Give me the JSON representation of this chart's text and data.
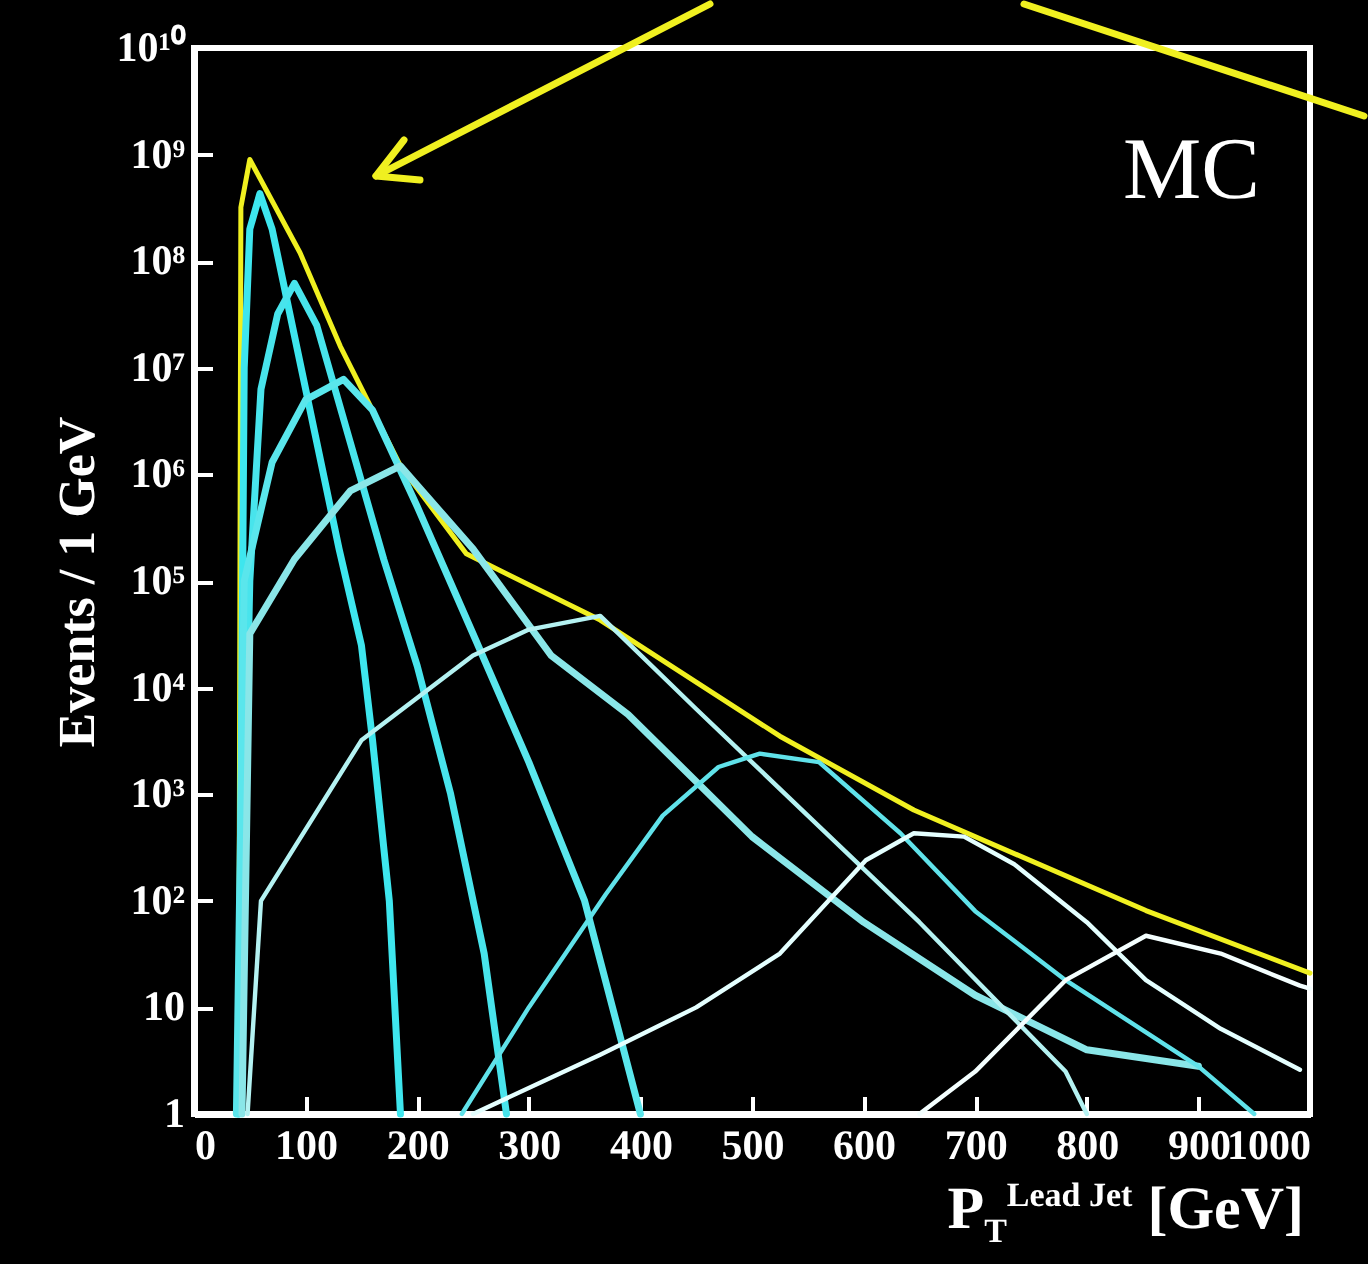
{
  "chart_data": {
    "type": "line",
    "ylabel": "Events / 1 GeV",
    "xlabel": "P$_{T}$$^{Lead Jet}$ [GeV]",
    "annotations": [
      "MC"
    ],
    "xlim": [
      0,
      1000
    ],
    "xticks": [
      0,
      100,
      200,
      300,
      400,
      500,
      600,
      700,
      800,
      900,
      1000
    ],
    "ylim": [
      1,
      10000000000
    ],
    "yticks": [
      1,
      10,
      {
        "value": 100,
        "label": "10²"
      },
      {
        "value": 1000,
        "label": "10³"
      },
      {
        "value": 10000,
        "label": "10⁴"
      },
      {
        "value": 100000,
        "label": "10⁵"
      },
      {
        "value": 1000000,
        "label": "10⁶"
      },
      {
        "value": 10000000,
        "label": "10⁷"
      },
      {
        "value": 100000000,
        "label": "10⁸"
      },
      {
        "value": 1000000000,
        "label": "10⁹"
      },
      {
        "value": 10000000000,
        "label": "10¹⁰"
      }
    ],
    "log": "y",
    "series": [
      {
        "color": "#f0f020",
        "x": [
          40,
          42,
          50,
          95,
          131,
          185,
          244,
          364,
          525,
          645,
          853,
          1000
        ],
        "values": [
          1,
          320000000,
          900000000,
          120000000,
          16000000,
          1200000,
          180000,
          43000,
          3500,
          710,
          81,
          21
        ]
      },
      {
        "color": "#3ee6ee",
        "x": [
          40,
          45,
          50,
          59,
          70,
          90,
          110,
          130,
          150,
          160,
          175,
          185
        ],
        "values": [
          1,
          10000000,
          200000000,
          430000000,
          200000000,
          20000000,
          2000000,
          200000,
          25000,
          3200,
          100,
          1
        ]
      },
      {
        "color": "#48e4ec",
        "x": [
          40,
          50,
          60,
          75,
          90,
          110,
          140,
          170,
          200,
          230,
          260,
          280
        ],
        "values": [
          1,
          100000,
          6300000,
          32000000,
          62000000,
          25000000,
          2000000,
          160000,
          16000,
          1000,
          32,
          1
        ]
      },
      {
        "color": "#5ae6ec",
        "x": [
          38,
          45,
          70,
          100,
          134,
          160,
          200,
          250,
          300,
          350,
          400
        ],
        "values": [
          1,
          100000,
          1300000,
          5000000,
          7800000,
          4000000,
          500000,
          32000,
          2000,
          100,
          1
        ]
      },
      {
        "color": "#8ae6e8",
        "x": [
          43,
          50,
          90,
          140,
          185,
          250,
          320,
          389,
          500,
          600,
          700,
          800,
          900
        ],
        "values": [
          1,
          32000,
          160000,
          700000,
          1200000,
          200000,
          20000,
          5600,
          400,
          63,
          13,
          4,
          2.8
        ]
      },
      {
        "color": "#b4f2f2",
        "x": [
          48,
          60,
          150,
          250,
          300,
          364,
          450,
          550,
          650,
          781,
          800
        ],
        "values": [
          1,
          100,
          3200,
          20000,
          35000,
          47000,
          6300,
          630,
          63,
          2.5,
          1
        ]
      },
      {
        "color": "#60e2ea",
        "x": [
          240,
          300,
          369,
          420,
          470,
          507,
          560,
          633,
          700,
          781,
          900,
          950
        ],
        "values": [
          1,
          10,
          115,
          630,
          1800,
          2400,
          2000,
          430,
          80,
          18,
          2.8,
          1
        ]
      },
      {
        "color": "#e4ffff",
        "x": [
          250,
          364,
          450,
          525,
          602,
          645,
          690,
          735,
          800,
          853,
          920,
          991
        ],
        "values": [
          1,
          3.6,
          10,
          32,
          240,
          430,
          400,
          220,
          63,
          18,
          6.3,
          2.6
        ]
      },
      {
        "color": "#f4ffff",
        "x": [
          650,
          700,
          781,
          853,
          920,
          991,
          1000
        ],
        "values": [
          1,
          2.5,
          18,
          47,
          32,
          16,
          15
        ]
      }
    ]
  }
}
